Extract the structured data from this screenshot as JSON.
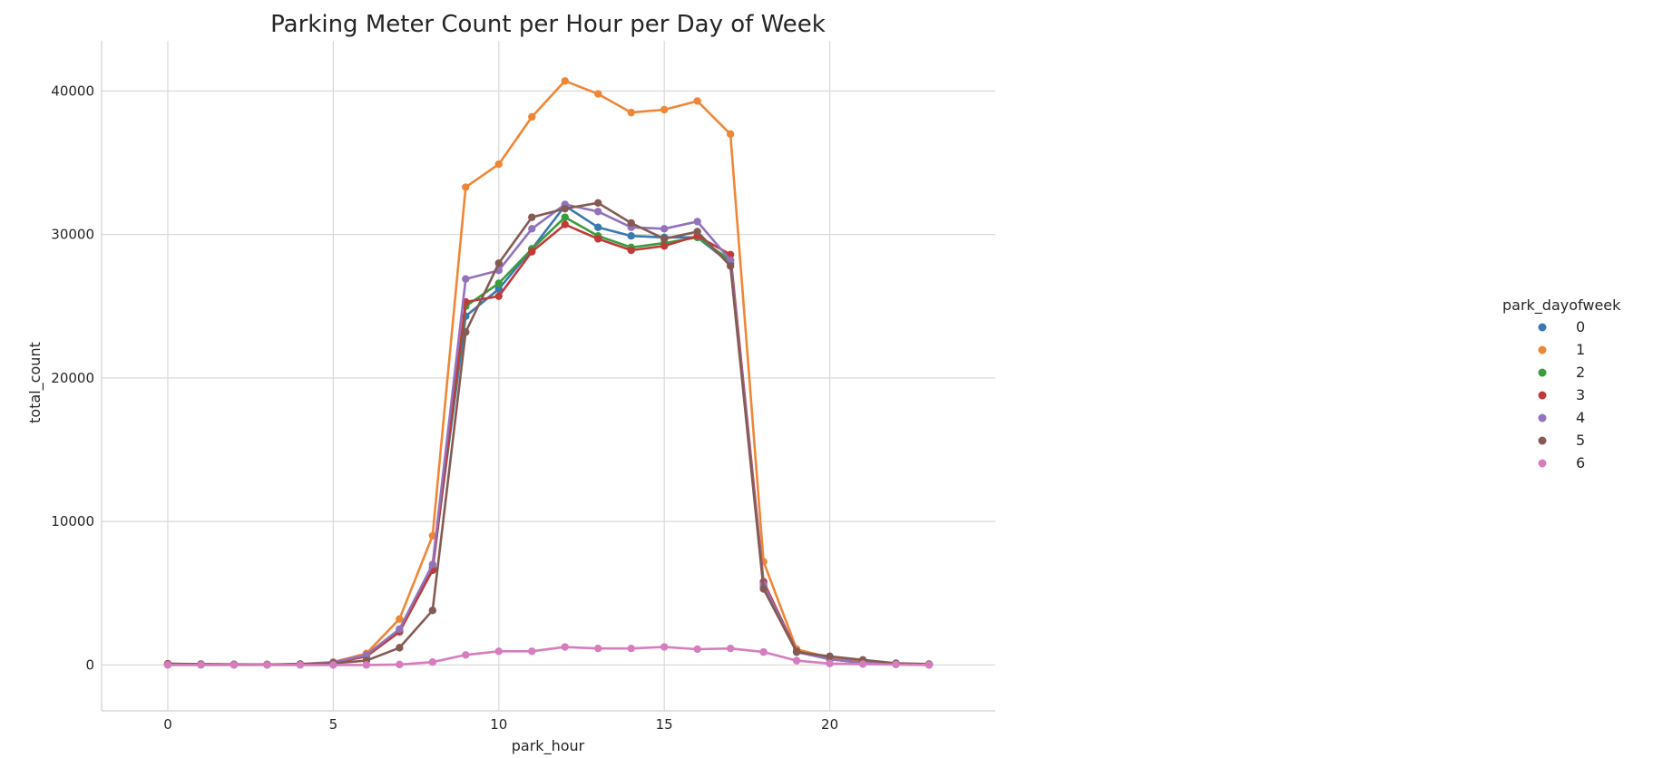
{
  "chart_data": {
    "type": "line",
    "title": "Parking Meter Count per Hour per Day of Week",
    "xlabel": "park_hour",
    "ylabel": "total_count",
    "xlim": [
      -2,
      25
    ],
    "ylim": [
      -3200,
      43500
    ],
    "xticks": [
      0,
      5,
      10,
      15,
      20
    ],
    "yticks": [
      0,
      10000,
      20000,
      30000,
      40000
    ],
    "grid": true,
    "legend": {
      "title": "park_dayofweek",
      "placement": "right"
    },
    "x": [
      0,
      1,
      2,
      3,
      4,
      5,
      6,
      7,
      8,
      9,
      10,
      11,
      12,
      13,
      14,
      15,
      16,
      17,
      18,
      19,
      20,
      21,
      22,
      23
    ],
    "series": [
      {
        "name": "0",
        "color": "#3a78b2",
        "values": [
          50,
          30,
          20,
          20,
          50,
          150,
          600,
          2400,
          6800,
          24300,
          26200,
          29000,
          32000,
          30500,
          29900,
          29800,
          29800,
          28000,
          5500,
          900,
          400,
          150,
          60,
          20
        ]
      },
      {
        "name": "1",
        "color": "#ef8636",
        "values": [
          80,
          50,
          30,
          30,
          60,
          200,
          800,
          3200,
          9000,
          33300,
          34900,
          38200,
          40700,
          39800,
          38500,
          38700,
          39300,
          37000,
          7200,
          1100,
          500,
          200,
          80,
          30
        ]
      },
      {
        "name": "2",
        "color": "#3b9c3b",
        "values": [
          50,
          30,
          20,
          20,
          50,
          150,
          600,
          2400,
          6700,
          25000,
          26600,
          29000,
          31200,
          29900,
          29100,
          29400,
          29800,
          28200,
          5700,
          950,
          400,
          150,
          60,
          20
        ]
      },
      {
        "name": "3",
        "color": "#c03a3a",
        "values": [
          50,
          30,
          20,
          20,
          50,
          150,
          600,
          2300,
          6600,
          25300,
          25700,
          28800,
          30700,
          29700,
          28900,
          29200,
          29900,
          28600,
          5800,
          950,
          400,
          150,
          60,
          20
        ]
      },
      {
        "name": "4",
        "color": "#9372bc",
        "values": [
          60,
          40,
          20,
          20,
          60,
          180,
          700,
          2500,
          7000,
          26900,
          27500,
          30400,
          32100,
          31600,
          30500,
          30400,
          30900,
          28200,
          5600,
          900,
          400,
          150,
          60,
          20
        ]
      },
      {
        "name": "5",
        "color": "#845b53",
        "values": [
          80,
          60,
          40,
          30,
          60,
          120,
          300,
          1200,
          3800,
          23200,
          28000,
          31200,
          31800,
          32200,
          30800,
          29700,
          30200,
          27800,
          5300,
          900,
          600,
          350,
          120,
          60
        ]
      },
      {
        "name": "6",
        "color": "#d57dbf",
        "values": [
          0,
          0,
          0,
          0,
          0,
          0,
          0,
          30,
          200,
          700,
          950,
          950,
          1250,
          1150,
          1150,
          1250,
          1100,
          1150,
          900,
          300,
          100,
          60,
          30,
          0
        ]
      }
    ]
  }
}
